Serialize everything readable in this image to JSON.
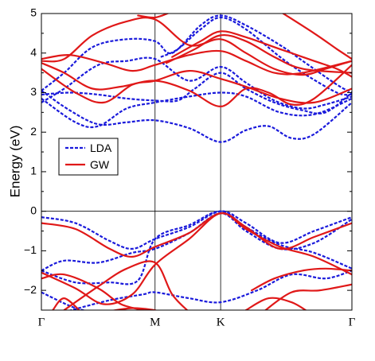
{
  "chart_data": {
    "type": "line",
    "title": "",
    "ylabel": "Energy (eV)",
    "xlabel": "",
    "ylim": [
      -2.5,
      5
    ],
    "xlim": [
      0,
      3
    ],
    "yticks": [
      -2,
      -1,
      0,
      1,
      2,
      3,
      4,
      5
    ],
    "ytick_labels": [
      "−2",
      "−1",
      "0",
      "1",
      "2",
      "3",
      "4",
      "5"
    ],
    "kpoints": [
      {
        "label": "Γ",
        "x": 0
      },
      {
        "label": "M",
        "x": 1
      },
      {
        "label": "K",
        "x": 1.577
      },
      {
        "label": "Γ",
        "x": 2.732
      }
    ],
    "fermi_level": 0,
    "legend": {
      "placement": "left-middle",
      "entries": [
        "LDA",
        "GW"
      ]
    },
    "colors": {
      "LDA": "#1a1adb",
      "GW": "#e01818"
    },
    "series": [
      {
        "name": "LDA",
        "style": "dashed",
        "bands": [
          [
            [
              0,
              -0.15
            ],
            [
              0.3,
              -0.3
            ],
            [
              0.6,
              -0.75
            ],
            [
              0.8,
              -0.95
            ],
            [
              1,
              -0.7
            ],
            [
              1.3,
              -0.4
            ],
            [
              1.577,
              0
            ],
            [
              1.8,
              -0.3
            ],
            [
              2.1,
              -0.8
            ],
            [
              2.4,
              -0.5
            ],
            [
              2.732,
              -0.15
            ]
          ],
          [
            [
              0,
              -1.5
            ],
            [
              0.2,
              -1.25
            ],
            [
              0.5,
              -1.3
            ],
            [
              0.8,
              -1.05
            ],
            [
              1,
              -0.95
            ],
            [
              1.3,
              -0.55
            ],
            [
              1.577,
              -0.05
            ],
            [
              1.8,
              -0.5
            ],
            [
              2.1,
              -0.95
            ],
            [
              2.4,
              -0.8
            ],
            [
              2.732,
              -0.2
            ]
          ],
          [
            [
              0,
              -1.5
            ],
            [
              0.3,
              -1.8
            ],
            [
              0.6,
              -1.8
            ],
            [
              0.85,
              -1.75
            ],
            [
              1,
              -0.7
            ],
            [
              1.3,
              -0.35
            ],
            [
              1.577,
              0
            ],
            [
              1.8,
              -0.4
            ],
            [
              2.1,
              -0.85
            ],
            [
              2.4,
              -1.05
            ],
            [
              2.732,
              -1.45
            ]
          ],
          [
            [
              0,
              -2.05
            ],
            [
              0.3,
              -2.45
            ],
            [
              0.5,
              -2.55
            ]
          ],
          [
            [
              0.2,
              -2.55
            ],
            [
              0.6,
              -2.25
            ],
            [
              0.9,
              -2.1
            ],
            [
              1,
              -2.05
            ],
            [
              1.3,
              -2.2
            ],
            [
              1.577,
              -2.3
            ],
            [
              1.9,
              -2.0
            ],
            [
              2.2,
              -1.6
            ],
            [
              2.5,
              -1.7
            ],
            [
              2.732,
              -1.5
            ]
          ],
          [
            [
              0,
              3.05
            ],
            [
              0.25,
              2.55
            ],
            [
              0.5,
              2.2
            ],
            [
              0.75,
              2.25
            ],
            [
              1,
              2.3
            ],
            [
              1.3,
              2.1
            ],
            [
              1.577,
              1.75
            ],
            [
              1.8,
              2.05
            ],
            [
              2.0,
              2.15
            ],
            [
              2.2,
              1.85
            ],
            [
              2.4,
              1.95
            ],
            [
              2.732,
              2.75
            ]
          ],
          [
            [
              0,
              2.85
            ],
            [
              0.3,
              2.25
            ],
            [
              0.5,
              2.15
            ],
            [
              0.75,
              2.6
            ],
            [
              1,
              2.75
            ],
            [
              1.3,
              2.9
            ],
            [
              1.577,
              3.0
            ],
            [
              1.8,
              2.9
            ],
            [
              2.1,
              2.5
            ],
            [
              2.4,
              2.45
            ],
            [
              2.732,
              2.85
            ]
          ],
          [
            [
              0,
              2.95
            ],
            [
              0.25,
              3.0
            ],
            [
              0.5,
              2.95
            ],
            [
              0.75,
              2.85
            ],
            [
              1,
              2.8
            ],
            [
              1.2,
              2.8
            ],
            [
              1.35,
              3.1
            ],
            [
              1.577,
              3.5
            ],
            [
              1.8,
              3.1
            ],
            [
              2.05,
              2.75
            ],
            [
              2.3,
              2.55
            ],
            [
              2.5,
              2.5
            ],
            [
              2.732,
              3.0
            ]
          ],
          [
            [
              0,
              2.75
            ],
            [
              0.2,
              3.1
            ],
            [
              0.5,
              3.7
            ],
            [
              0.75,
              3.8
            ],
            [
              1,
              3.85
            ],
            [
              1.3,
              3.3
            ],
            [
              1.577,
              3.65
            ],
            [
              1.8,
              3.25
            ],
            [
              2.05,
              2.8
            ],
            [
              2.3,
              2.6
            ],
            [
              2.5,
              2.7
            ],
            [
              2.732,
              2.9
            ]
          ],
          [
            [
              0,
              3.05
            ],
            [
              0.2,
              3.5
            ],
            [
              0.45,
              4.15
            ],
            [
              0.75,
              4.35
            ],
            [
              1,
              4.3
            ],
            [
              1.15,
              4.0
            ],
            [
              1.4,
              4.7
            ],
            [
              1.577,
              4.95
            ],
            [
              1.8,
              4.7
            ],
            [
              2.1,
              4.2
            ],
            [
              2.3,
              3.8
            ],
            [
              2.6,
              3.2
            ],
            [
              2.732,
              3.0
            ]
          ],
          [
            [
              1.05,
              3.9
            ],
            [
              1.2,
              4.1
            ],
            [
              1.4,
              4.6
            ],
            [
              1.577,
              4.9
            ],
            [
              1.8,
              4.6
            ],
            [
              2.1,
              3.9
            ],
            [
              2.3,
              3.5
            ],
            [
              2.6,
              3.0
            ],
            [
              2.732,
              2.95
            ]
          ]
        ]
      },
      {
        "name": "GW",
        "style": "solid",
        "bands": [
          [
            [
              0,
              -0.3
            ],
            [
              0.3,
              -0.45
            ],
            [
              0.6,
              -0.95
            ],
            [
              0.8,
              -1.15
            ],
            [
              1,
              -0.9
            ],
            [
              1.3,
              -0.55
            ],
            [
              1.577,
              -0.05
            ],
            [
              1.8,
              -0.4
            ],
            [
              2.1,
              -0.95
            ],
            [
              2.4,
              -0.65
            ],
            [
              2.732,
              -0.3
            ]
          ],
          [
            [
              0,
              -1.55
            ],
            [
              0.3,
              -1.95
            ],
            [
              0.55,
              -2.35
            ],
            [
              0.8,
              -2.1
            ],
            [
              1,
              -1.35
            ],
            [
              1.3,
              -0.7
            ],
            [
              1.577,
              -0.05
            ],
            [
              1.8,
              -0.45
            ],
            [
              2.1,
              -0.9
            ],
            [
              2.4,
              -1.15
            ],
            [
              2.732,
              -1.6
            ]
          ],
          [
            [
              0,
              -1.7
            ],
            [
              0.2,
              -1.6
            ],
            [
              0.5,
              -1.95
            ],
            [
              0.7,
              -2.35
            ],
            [
              0.9,
              -2.5
            ]
          ],
          [
            [
              0.2,
              -2.5
            ],
            [
              0.5,
              -1.9
            ],
            [
              0.75,
              -1.45
            ],
            [
              1,
              -1.3
            ],
            [
              1.15,
              -2.1
            ],
            [
              1.3,
              -2.55
            ]
          ],
          [
            [
              0.55,
              -2.55
            ],
            [
              0.8,
              -2.45
            ],
            [
              1,
              -2.5
            ]
          ],
          [
            [
              0.1,
              -2.5
            ],
            [
              0.2,
              -2.2
            ],
            [
              0.35,
              -2.55
            ]
          ],
          [
            [
              1.8,
              -2.5
            ],
            [
              2.0,
              -2.2
            ],
            [
              2.2,
              -2.3
            ],
            [
              2.35,
              -2.55
            ]
          ],
          [
            [
              1.85,
              -2.0
            ],
            [
              2.05,
              -1.7
            ],
            [
              2.3,
              -1.5
            ],
            [
              2.5,
              -1.45
            ],
            [
              2.732,
              -1.5
            ]
          ],
          [
            [
              1.95,
              -2.55
            ],
            [
              2.2,
              -2.05
            ],
            [
              2.45,
              -2.0
            ],
            [
              2.732,
              -1.85
            ]
          ],
          [
            [
              0,
              3.75
            ],
            [
              0.2,
              3.5
            ],
            [
              0.45,
              3.1
            ],
            [
              0.7,
              3.15
            ],
            [
              1,
              3.3
            ],
            [
              1.3,
              3.05
            ],
            [
              1.577,
              2.65
            ],
            [
              1.8,
              3.1
            ],
            [
              2.0,
              3.0
            ],
            [
              2.2,
              2.7
            ],
            [
              2.4,
              2.85
            ],
            [
              2.732,
              3.7
            ]
          ],
          [
            [
              0,
              3.6
            ],
            [
              0.3,
              3.0
            ],
            [
              0.55,
              2.75
            ],
            [
              0.8,
              3.2
            ],
            [
              1,
              3.3
            ],
            [
              1.3,
              3.55
            ],
            [
              1.577,
              3.35
            ],
            [
              1.8,
              3.15
            ],
            [
              2.1,
              2.85
            ],
            [
              2.4,
              2.75
            ],
            [
              2.732,
              3.1
            ]
          ],
          [
            [
              0,
              3.85
            ],
            [
              0.25,
              3.95
            ],
            [
              0.55,
              3.75
            ],
            [
              0.8,
              3.55
            ],
            [
              1,
              3.7
            ],
            [
              1.3,
              3.95
            ],
            [
              1.577,
              4.05
            ],
            [
              1.8,
              3.8
            ],
            [
              2.05,
              3.5
            ],
            [
              2.3,
              3.5
            ],
            [
              2.732,
              3.8
            ]
          ],
          [
            [
              0,
              3.8
            ],
            [
              0.2,
              3.85
            ],
            [
              0.45,
              4.45
            ],
            [
              0.75,
              4.8
            ],
            [
              1,
              4.85
            ],
            [
              1.3,
              4.2
            ],
            [
              1.577,
              4.35
            ],
            [
              1.8,
              4.0
            ],
            [
              2.05,
              3.6
            ],
            [
              2.3,
              3.45
            ],
            [
              2.5,
              3.6
            ],
            [
              2.732,
              3.8
            ]
          ],
          [
            [
              0.85,
              4.95
            ],
            [
              1,
              4.9
            ],
            [
              1.15,
              5.05
            ]
          ],
          [
            [
              1.1,
              3.75
            ],
            [
              1.35,
              4.1
            ],
            [
              1.577,
              4.45
            ],
            [
              1.8,
              4.3
            ],
            [
              2.05,
              3.9
            ],
            [
              2.3,
              3.6
            ],
            [
              2.732,
              3.5
            ]
          ],
          [
            [
              1.15,
              3.9
            ],
            [
              1.4,
              4.3
            ],
            [
              1.577,
              4.55
            ],
            [
              1.8,
              4.4
            ],
            [
              2.1,
              4.1
            ],
            [
              2.4,
              3.8
            ],
            [
              2.6,
              3.6
            ],
            [
              2.732,
              3.4
            ]
          ],
          [
            [
              2.1,
              5.05
            ],
            [
              2.4,
              4.5
            ],
            [
              2.6,
              4.1
            ],
            [
              2.732,
              3.85
            ]
          ]
        ]
      }
    ]
  }
}
